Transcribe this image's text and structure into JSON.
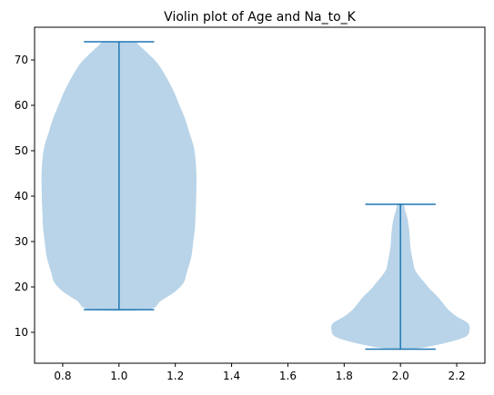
{
  "chart_data": {
    "type": "violin",
    "title": "Violin plot of Age and Na_to_K",
    "xlabel": "",
    "ylabel": "",
    "xlim": [
      0.7,
      2.3
    ],
    "ylim": [
      3.2,
      77.2
    ],
    "x_ticks": [
      0.8,
      1.0,
      1.2,
      1.4,
      1.6,
      1.8,
      2.0,
      2.2
    ],
    "x_tick_labels": [
      "0.8",
      "1.0",
      "1.2",
      "1.4",
      "1.6",
      "1.8",
      "2.0",
      "2.2"
    ],
    "y_ticks": [
      10,
      20,
      30,
      40,
      50,
      60,
      70
    ],
    "y_tick_labels": [
      "10",
      "20",
      "30",
      "40",
      "50",
      "60",
      "70"
    ],
    "grid": false,
    "body_color": "#b9d4e8",
    "line_color": "#1f77b4",
    "violins": [
      {
        "position": 1.0,
        "min": 15,
        "max": 74,
        "cap_halfwidth": 0.125,
        "profile_y": [
          15,
          17,
          19,
          21,
          23,
          25,
          27,
          30,
          33,
          36,
          39,
          42,
          45,
          48,
          51,
          54,
          57,
          60,
          63,
          66,
          69,
          71,
          73,
          74
        ],
        "profile_halfwidth": [
          0.1,
          0.15,
          0.2,
          0.23,
          0.24,
          0.25,
          0.258,
          0.264,
          0.27,
          0.272,
          0.274,
          0.275,
          0.275,
          0.272,
          0.265,
          0.25,
          0.235,
          0.215,
          0.195,
          0.17,
          0.14,
          0.11,
          0.075,
          0.05
        ]
      },
      {
        "position": 2.0,
        "min": 6.3,
        "max": 38.2,
        "cap_halfwidth": 0.125,
        "profile_y": [
          6.3,
          7.5,
          9,
          10.5,
          12,
          13.5,
          15,
          16.5,
          18,
          19.5,
          21,
          22.5,
          24,
          25.5,
          27,
          29,
          31,
          33,
          35,
          36.5,
          38.2
        ],
        "profile_halfwidth": [
          0.04,
          0.15,
          0.23,
          0.245,
          0.24,
          0.2,
          0.17,
          0.15,
          0.13,
          0.105,
          0.085,
          0.065,
          0.05,
          0.045,
          0.04,
          0.035,
          0.033,
          0.03,
          0.025,
          0.018,
          0.01
        ]
      }
    ]
  }
}
